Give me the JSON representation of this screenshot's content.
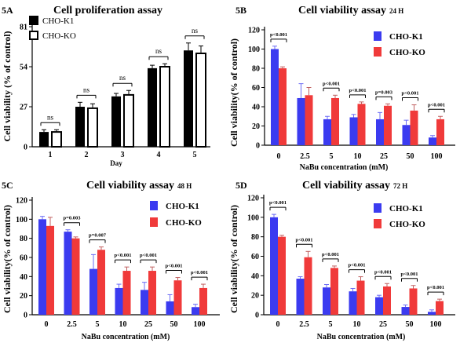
{
  "chart_data": [
    {
      "panel": "5A",
      "type": "bar",
      "title": "Cell proliferation assay",
      "xlabel": "Day",
      "ylabel": "Cell viability (% of control)",
      "categories": [
        "1",
        "2",
        "3",
        "4",
        "5"
      ],
      "ylim": [
        0,
        81
      ],
      "yticks": [
        "0",
        "27",
        "54",
        "81"
      ],
      "legend_position": "top-left",
      "series": [
        {
          "name": "CHO-K1",
          "values": [
            10,
            27,
            34,
            53,
            65
          ],
          "errors": [
            1.5,
            3,
            2,
            2,
            5
          ],
          "color": "#000000",
          "style": "filled"
        },
        {
          "name": "CHO-KO",
          "values": [
            10,
            26,
            35,
            54,
            63
          ],
          "errors": [
            1.5,
            3,
            3,
            2,
            5
          ],
          "color": "#000000",
          "style": "outline"
        }
      ],
      "annotations": [
        "ns",
        "ns",
        "ns",
        "ns",
        "ns"
      ]
    },
    {
      "panel": "5B",
      "type": "bar",
      "title": "Cell viability assay",
      "title_suffix": "24 H",
      "xlabel": "NaBu concentration (mM)",
      "ylabel": "Cell viability(% of control)",
      "categories": [
        "0",
        "2.5",
        "5",
        "10",
        "25",
        "50",
        "100"
      ],
      "ylim": [
        0,
        120
      ],
      "yticks": [
        "0",
        "20",
        "40",
        "60",
        "80",
        "100",
        "120"
      ],
      "legend_position": "top-right",
      "series": [
        {
          "name": "CHO-K1",
          "values": [
            100,
            49,
            27,
            29,
            27,
            21,
            8
          ],
          "errors": [
            3,
            15,
            3,
            3,
            7,
            5,
            2
          ],
          "color": "#3b3bf0"
        },
        {
          "name": "CHO-KO",
          "values": [
            80,
            52,
            49,
            43,
            41,
            36,
            27
          ],
          "errors": [
            1.5,
            8,
            3,
            2,
            2,
            6,
            3
          ],
          "color": "#f03a3a"
        }
      ],
      "annotations": [
        "p<0.001",
        "",
        "p<0.001",
        "p<0.001",
        "p=0.003",
        "p<0.001",
        "p<0.001"
      ]
    },
    {
      "panel": "5C",
      "type": "bar",
      "title": "Cell viability assay",
      "title_suffix": "48 H",
      "xlabel": "NaBu concentration (mM)",
      "ylabel": "Cell viability(% of control)",
      "categories": [
        "0",
        "2.5",
        "5",
        "10",
        "25",
        "50",
        "100"
      ],
      "ylim": [
        0,
        120
      ],
      "yticks": [
        "0",
        "20",
        "40",
        "60",
        "80",
        "100",
        "120"
      ],
      "legend_position": "top-right",
      "series": [
        {
          "name": "CHO-K1",
          "values": [
            100,
            87,
            48,
            28,
            26,
            14,
            8
          ],
          "errors": [
            3,
            2,
            15,
            4,
            8,
            7,
            3
          ],
          "color": "#3b3bf0"
        },
        {
          "name": "CHO-KO",
          "values": [
            93,
            80,
            68,
            46,
            46,
            36,
            28
          ],
          "errors": [
            9,
            1.5,
            3,
            4,
            4,
            3,
            4
          ],
          "color": "#f03a3a"
        }
      ],
      "annotations": [
        "",
        "p=0.003",
        "p=0.007",
        "p<0.001",
        "p<0.001",
        "p<0.001",
        "p<0.001"
      ]
    },
    {
      "panel": "5D",
      "type": "bar",
      "title": "Cell viability assay",
      "title_suffix": "72 H",
      "xlabel": "NaBu concentration (mM)",
      "ylabel": "Cell viability(% of control)",
      "categories": [
        "0",
        "2.5",
        "5",
        "10",
        "25",
        "50",
        "100"
      ],
      "ylim": [
        0,
        120
      ],
      "yticks": [
        "0",
        "20",
        "40",
        "60",
        "80",
        "100",
        "120"
      ],
      "legend_position": "top-right",
      "series": [
        {
          "name": "CHO-K1",
          "values": [
            100,
            37,
            28,
            24,
            18,
            8,
            3
          ],
          "errors": [
            3,
            2,
            3,
            3,
            2,
            2,
            2
          ],
          "color": "#3b3bf0"
        },
        {
          "name": "CHO-KO",
          "values": [
            80,
            59,
            48,
            35,
            29,
            27,
            14
          ],
          "errors": [
            1.5,
            6,
            2,
            4,
            3,
            3,
            2
          ],
          "color": "#f03a3a"
        }
      ],
      "annotations": [
        "p<0.001",
        "p<0.001",
        "p<0.001",
        "p<0.001",
        "p<0.001",
        "p<0.001",
        "p<0.001"
      ]
    }
  ]
}
